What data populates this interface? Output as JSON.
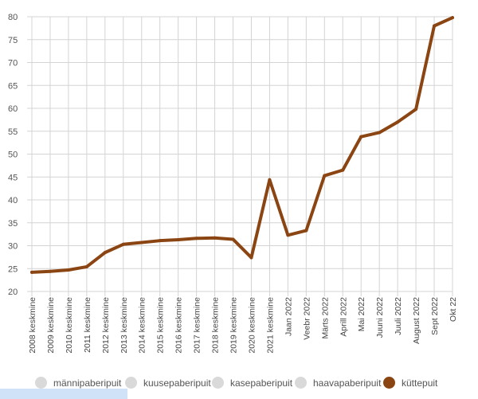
{
  "chart_data": {
    "type": "line",
    "title": "",
    "xlabel": "",
    "ylabel": "",
    "ylim": [
      20,
      80
    ],
    "yticks": [
      20,
      25,
      30,
      35,
      40,
      45,
      50,
      55,
      60,
      65,
      70,
      75,
      80
    ],
    "grid": true,
    "legend_position": "bottom",
    "categories": [
      "2008 keskmine",
      "2009 keskmine",
      "2010 keskmine",
      "2011 keskmine",
      "2012 keskmine",
      "2013 keskmine",
      "2014 keskmine",
      "2015 keskmine",
      "2016 keskmine",
      "2017 keskmine",
      "2018 keskmine",
      "2019 keskmine",
      "2020 keskmine",
      "2021 keskmine",
      "Jaan 2022",
      "Veebr 2022",
      "Märts 2022",
      "Aprill 2022",
      "Mai 2022",
      "Juuni 2022",
      "Juuli 2022",
      "August 2022",
      "Sept 2022",
      "Okt 22"
    ],
    "series": [
      {
        "name": "küttepuit",
        "color": "#8b4513",
        "visible": true,
        "values": [
          24.2,
          24.4,
          24.7,
          25.4,
          28.5,
          30.3,
          30.7,
          31.1,
          31.3,
          31.6,
          31.7,
          31.4,
          27.4,
          44.4,
          32.3,
          33.3,
          45.3,
          46.5,
          53.8,
          54.7,
          57.0,
          59.8,
          78.0,
          79.8
        ]
      }
    ],
    "legend": [
      {
        "name": "männipaberipuit",
        "color": "#d9d9d9",
        "active": false
      },
      {
        "name": "kuusepaberipuit",
        "color": "#d9d9d9",
        "active": false
      },
      {
        "name": "kasepaberipuit",
        "color": "#d9d9d9",
        "active": false
      },
      {
        "name": "haavapaberipuit",
        "color": "#d9d9d9",
        "active": false
      },
      {
        "name": "küttepuit",
        "color": "#8b4513",
        "active": true
      }
    ]
  }
}
